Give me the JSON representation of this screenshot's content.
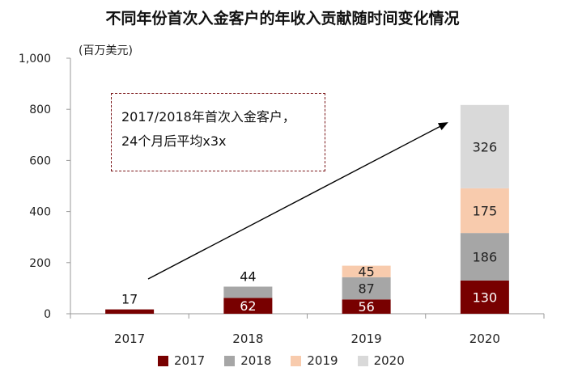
{
  "chart_data": {
    "type": "bar",
    "stacked": true,
    "title": "不同年份首次入金客户的年收入贡献随时间变化情况",
    "ylabel": "(百万美元)",
    "xlabel": "",
    "ylim": [
      0,
      1000
    ],
    "yticks": [
      "0",
      "200",
      "400",
      "600",
      "800",
      "1,000"
    ],
    "categories": [
      "2017",
      "2018",
      "2019",
      "2020"
    ],
    "series": [
      {
        "name": "2017",
        "color": "#780000",
        "values": [
          17,
          62,
          56,
          130
        ]
      },
      {
        "name": "2018",
        "color": "#a6a6a6",
        "values": [
          0,
          44,
          87,
          186
        ]
      },
      {
        "name": "2019",
        "color": "#f8cbad",
        "values": [
          0,
          0,
          45,
          175
        ]
      },
      {
        "name": "2020",
        "color": "#d9d9d9",
        "values": [
          0,
          0,
          0,
          326
        ]
      }
    ],
    "annotation": {
      "line1": "2017/2018年首次入金客户，",
      "line2": "24个月后平均x3x"
    },
    "grid": false,
    "legend_position": "bottom"
  }
}
